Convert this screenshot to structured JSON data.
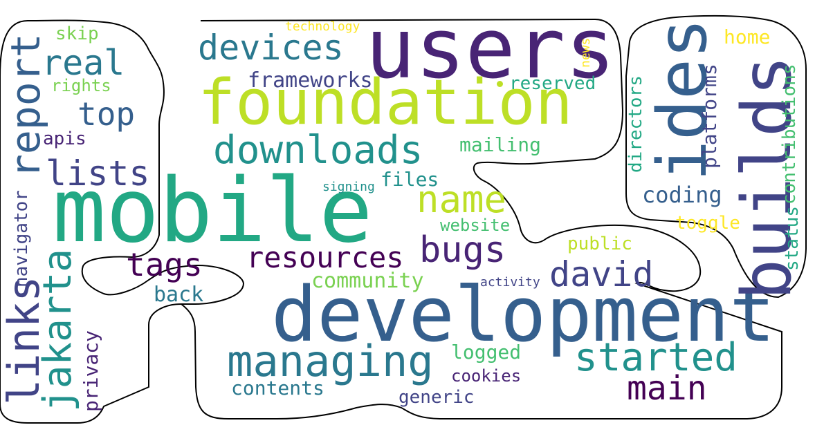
{
  "words": {
    "users": "users",
    "foundation": "foundation",
    "mobile": "mobile",
    "development": "development",
    "builds": "builds",
    "ides": "ides",
    "managing": "managing",
    "devices": "devices",
    "downloads": "downloads",
    "started": "started",
    "report": "report",
    "real": "real",
    "top": "top",
    "lists": "lists",
    "links": "links",
    "jakarta": "jakarta",
    "tags": "tags",
    "resources": "resources",
    "bugs": "bugs",
    "name": "name",
    "david": "david",
    "main": "main",
    "frameworks": "frameworks",
    "skip": "skip",
    "rights": "rights",
    "technology": "technology",
    "news": "news",
    "reserved": "reserved",
    "home": "home",
    "platforms": "platforms",
    "directors": "directors",
    "contributions": "contributions",
    "status": "status",
    "coding": "coding",
    "toggle": "toggle",
    "public": "public",
    "mailing": "mailing",
    "apis": "apis",
    "navigator": "navigator",
    "signing": "signing",
    "files": "files",
    "website": "website",
    "community": "community",
    "back": "back",
    "activity": "activity",
    "privacy": "privacy",
    "logged": "logged",
    "cookies": "cookies",
    "contents": "contents",
    "generic": "generic"
  },
  "colors": {
    "dark_purple": "#440154",
    "purple": "#482475",
    "indigo": "#414487",
    "blue": "#355f8d",
    "steel": "#2a788e",
    "teal": "#21918c",
    "green_teal": "#22a884",
    "green": "#44bf70",
    "light_green": "#7ad151",
    "lime": "#bddf26",
    "yellow": "#fde725",
    "outline": "#000000"
  }
}
